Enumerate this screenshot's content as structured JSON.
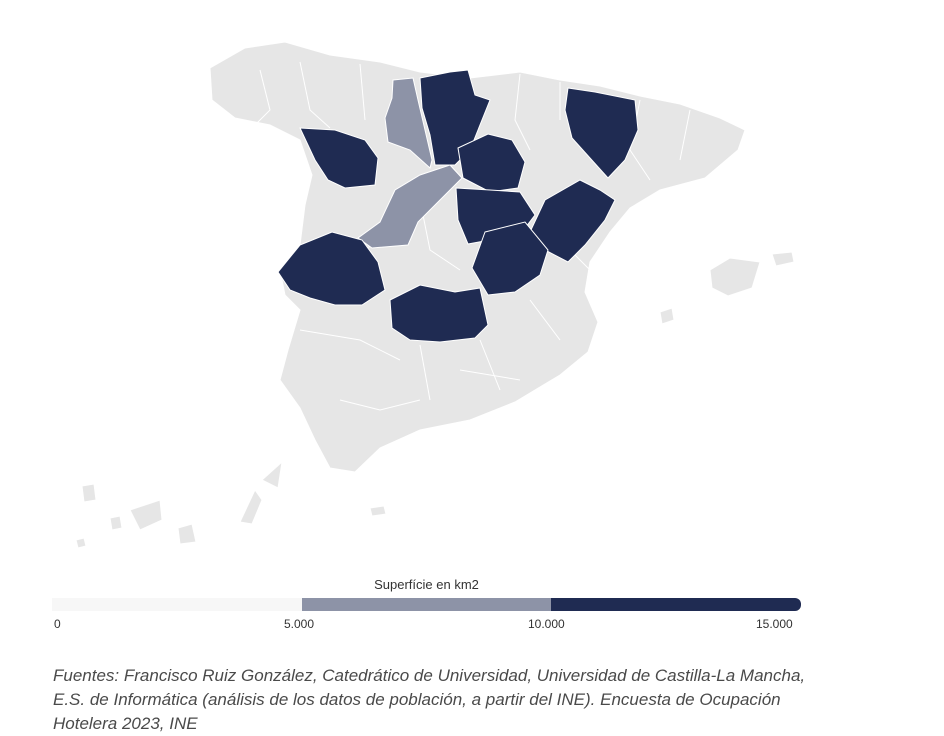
{
  "legend": {
    "title": "Superfície en km2",
    "ticks": [
      "0",
      "5.000",
      "10.000",
      "15.000"
    ],
    "bins": [
      {
        "from": 0,
        "to": 5000,
        "color": "#f7f7f7"
      },
      {
        "from": 5000,
        "to": 10000,
        "color": "#8d93a7"
      },
      {
        "from": 10000,
        "to": 15000,
        "color": "#1f2b52"
      }
    ]
  },
  "colors": {
    "land": "#e6e6e6",
    "border": "#ffffff",
    "mid": "#8d93a7",
    "high": "#1f2b52"
  },
  "source_text": "Fuentes: Francisco Ruiz González, Catedrático de Universidad, Universidad de Castilla-La Mancha, E.S. de Informática (análisis de los datos de población, a partir del INE). Encuesta de Ocupación Hotelera 2023, INE"
}
